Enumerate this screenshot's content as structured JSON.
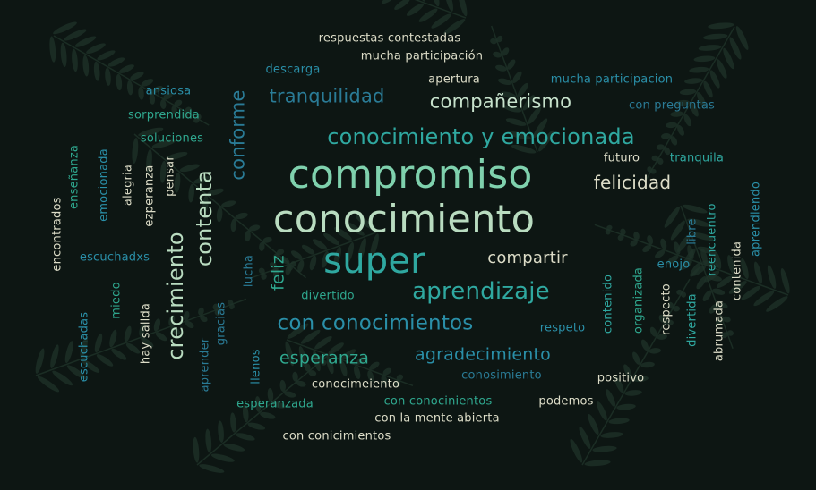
{
  "colors": {
    "background": "#0d1613",
    "leaf": "#1f3329",
    "mint": "#7fd1ad",
    "pale_green": "#b9dcc0",
    "teal": "#2fa8a0",
    "steel_blue": "#2a7b96",
    "cream": "#ddddc8",
    "light_gray": "#c4cfc8"
  },
  "words": [
    {
      "name": "word-compromiso",
      "text": "compromiso",
      "color": "#7fd1ad"
    },
    {
      "name": "word-conocimiento",
      "text": "conocimiento",
      "color": "#b9dcc0"
    },
    {
      "name": "word-super",
      "text": "super",
      "color": "#2fa8a0"
    },
    {
      "name": "word-conocimiento-y-emocionada",
      "text": "conocimiento y emocionada",
      "color": "#2fa8a0"
    },
    {
      "name": "word-aprendizaje",
      "text": "aprendizaje",
      "color": "#2fa8a0"
    },
    {
      "name": "word-con-conocimientos",
      "text": "con conocimientos",
      "color": "#2a8fa8"
    },
    {
      "name": "word-companerismo",
      "text": "compañerismo",
      "color": "#c7e2cc"
    },
    {
      "name": "word-tranquilidad",
      "text": "tranquilidad",
      "color": "#2a7b96"
    },
    {
      "name": "word-felicidad",
      "text": "felicidad",
      "color": "#ddddc8"
    },
    {
      "name": "word-compartir",
      "text": "compartir",
      "color": "#ddddc8"
    },
    {
      "name": "word-esperanza",
      "text": "esperanza",
      "color": "#2fa88f"
    },
    {
      "name": "word-agradecimiento",
      "text": "agradecimiento",
      "color": "#2a8fa8"
    },
    {
      "name": "word-respuestas-contestadas",
      "text": "respuestas contestadas",
      "color": "#ddddc8"
    },
    {
      "name": "word-mucha-participacion-1",
      "text": "mucha participación",
      "color": "#ddddc8"
    },
    {
      "name": "word-descarga",
      "text": "descarga",
      "color": "#2a8fa8"
    },
    {
      "name": "word-apertura",
      "text": "apertura",
      "color": "#ddddc8"
    },
    {
      "name": "word-mucha-participacion-2",
      "text": "mucha participacion",
      "color": "#2a8fa8"
    },
    {
      "name": "word-ansiosa",
      "text": "ansiosa",
      "color": "#2a8fa8"
    },
    {
      "name": "word-sorprendida",
      "text": "sorprendida",
      "color": "#2fa88f"
    },
    {
      "name": "word-soluciones",
      "text": "soluciones",
      "color": "#2fa88f"
    },
    {
      "name": "word-con-preguntas",
      "text": "con preguntas",
      "color": "#2a7b96"
    },
    {
      "name": "word-futuro",
      "text": "futuro",
      "color": "#ddddc8"
    },
    {
      "name": "word-tranquila",
      "text": "tranquila",
      "color": "#2fa8a0"
    },
    {
      "name": "word-enojo",
      "text": "enojo",
      "color": "#2a8fa8"
    },
    {
      "name": "word-divertido",
      "text": "divertido",
      "color": "#2fa88f"
    },
    {
      "name": "word-respeto",
      "text": "respeto",
      "color": "#2a8fa8"
    },
    {
      "name": "word-conosimiento",
      "text": "conosimiento",
      "color": "#2a7b96"
    },
    {
      "name": "word-positivo",
      "text": "positivo",
      "color": "#ddddc8"
    },
    {
      "name": "word-conocimeiento",
      "text": "conocimeiento",
      "color": "#ddddc8"
    },
    {
      "name": "word-con-conocinientos",
      "text": "con conocinientos",
      "color": "#2fa88f"
    },
    {
      "name": "word-podemos",
      "text": "podemos",
      "color": "#ddddc8"
    },
    {
      "name": "word-esperanzada",
      "text": "esperanzada",
      "color": "#2fa88f"
    },
    {
      "name": "word-con-la-mente-abierta",
      "text": "con la mente abierta",
      "color": "#ddddc8"
    },
    {
      "name": "word-con-conicimientos",
      "text": "con conicimientos",
      "color": "#ddddc8"
    },
    {
      "name": "word-escuchadxs",
      "text": "escuchadxs",
      "color": "#2a8fa8"
    },
    {
      "name": "word-encontrados",
      "text": "encontrados",
      "color": "#ddddc8"
    },
    {
      "name": "word-ensenanza",
      "text": "enseñanza",
      "color": "#2fa88f"
    },
    {
      "name": "word-emocionada",
      "text": "emocionada",
      "color": "#2a8fa8"
    },
    {
      "name": "word-alegria",
      "text": "alegria",
      "color": "#ddddc8"
    },
    {
      "name": "word-ezperanza",
      "text": "ezperanza",
      "color": "#ddddc8"
    },
    {
      "name": "word-pensar",
      "text": "pensar",
      "color": "#ddddc8"
    },
    {
      "name": "word-contenta",
      "text": "contenta",
      "color": "#b9dcc0"
    },
    {
      "name": "word-conforme",
      "text": "conforme",
      "color": "#2a7b96"
    },
    {
      "name": "word-crecimiento",
      "text": "crecimiento",
      "color": "#b9dcc0"
    },
    {
      "name": "word-feliz",
      "text": "feliz",
      "color": "#2fa88f"
    },
    {
      "name": "word-lucha",
      "text": "lucha",
      "color": "#2a7b96"
    },
    {
      "name": "word-miedo",
      "text": "miedo",
      "color": "#2fa88f"
    },
    {
      "name": "word-escuchadas",
      "text": "escuchadas",
      "color": "#2a8fa8"
    },
    {
      "name": "word-hay-salida",
      "text": "hay salida",
      "color": "#ddddc8"
    },
    {
      "name": "word-gracias",
      "text": "gracias",
      "color": "#2a7b96"
    },
    {
      "name": "word-aprender",
      "text": "aprender",
      "color": "#2a7b96"
    },
    {
      "name": "word-llenos",
      "text": "llenos",
      "color": "#2a8fa8"
    },
    {
      "name": "word-contenido",
      "text": "contenido",
      "color": "#2fa8a0"
    },
    {
      "name": "word-organizada",
      "text": "organizada",
      "color": "#2fa88f"
    },
    {
      "name": "word-respecto",
      "text": "respecto",
      "color": "#ddddc8"
    },
    {
      "name": "word-divertida",
      "text": "divertida",
      "color": "#2fa8a0"
    },
    {
      "name": "word-abrumada",
      "text": "abrumada",
      "color": "#ddddc8"
    },
    {
      "name": "word-reencuentro",
      "text": "reencuentro",
      "color": "#2fa8a0"
    },
    {
      "name": "word-libre",
      "text": "libre",
      "color": "#2a7b96"
    },
    {
      "name": "word-contenida",
      "text": "contenida",
      "color": "#ddddc8"
    },
    {
      "name": "word-aprendiendo",
      "text": "aprendiendo",
      "color": "#2a8fa8"
    }
  ]
}
